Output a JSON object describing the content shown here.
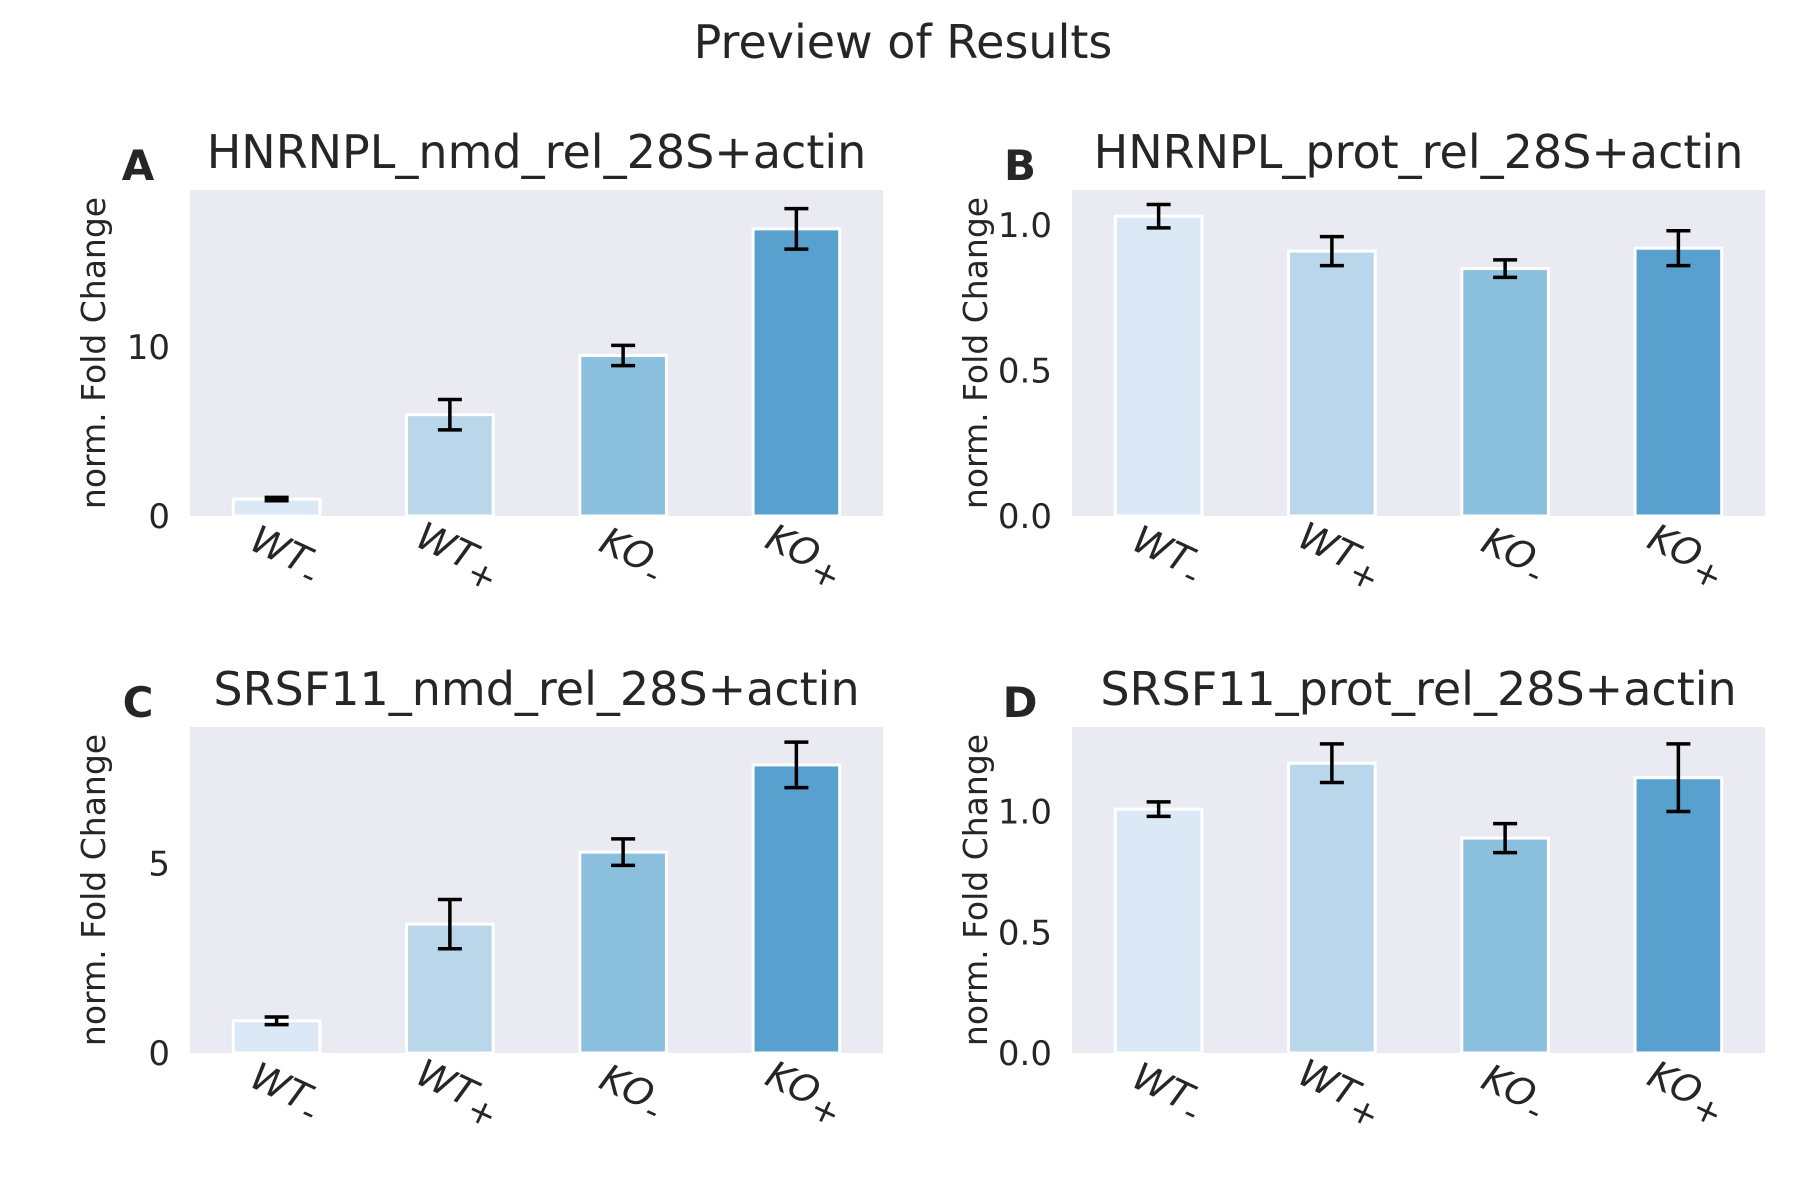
{
  "figure": {
    "suptitle": "Preview of Results"
  },
  "colors": [
    "#dbe9f6",
    "#bad6eb",
    "#8abfdd",
    "#58a1cf"
  ],
  "chart_data": [
    {
      "type": "bar",
      "panel_label": "A",
      "title": "HNRNPL_nmd_rel_28S+actin",
      "ylabel": "norm. Fold Change",
      "categories": [
        "WT-",
        "WT+",
        "KO-",
        "KO+"
      ],
      "values": [
        1.0,
        6.0,
        9.5,
        17.0
      ],
      "errors": [
        0.1,
        0.9,
        0.6,
        1.2
      ],
      "ylim": [
        0,
        19.3
      ],
      "yticks": [
        0,
        10
      ],
      "ytick_labels": [
        "0",
        "10"
      ],
      "grid": false
    },
    {
      "type": "bar",
      "panel_label": "B",
      "title": "HNRNPL_prot_rel_28S+actin",
      "ylabel": "norm. Fold Change",
      "categories": [
        "WT-",
        "WT+",
        "KO-",
        "KO+"
      ],
      "values": [
        1.03,
        0.91,
        0.85,
        0.92
      ],
      "errors": [
        0.04,
        0.05,
        0.03,
        0.06
      ],
      "ylim": [
        0,
        1.12
      ],
      "yticks": [
        0,
        0.5,
        1.0
      ],
      "ytick_labels": [
        "0.0",
        "0.5",
        "1.0"
      ],
      "grid": false
    },
    {
      "type": "bar",
      "panel_label": "C",
      "title": "SRSF11_nmd_rel_28S+actin",
      "ylabel": "norm. Fold Change",
      "categories": [
        "WT-",
        "WT+",
        "KO-",
        "KO+"
      ],
      "values": [
        0.85,
        3.4,
        5.3,
        7.6
      ],
      "errors": [
        0.1,
        0.65,
        0.35,
        0.6
      ],
      "ylim": [
        0,
        8.6
      ],
      "yticks": [
        0,
        5
      ],
      "ytick_labels": [
        "0",
        "5"
      ],
      "grid": false
    },
    {
      "type": "bar",
      "panel_label": "D",
      "title": "SRSF11_prot_rel_28S+actin",
      "ylabel": "norm. Fold Change",
      "categories": [
        "WT-",
        "WT+",
        "KO-",
        "KO+"
      ],
      "values": [
        1.01,
        1.2,
        0.89,
        1.14
      ],
      "errors": [
        0.03,
        0.08,
        0.06,
        0.14
      ],
      "ylim": [
        0,
        1.35
      ],
      "yticks": [
        0,
        0.5,
        1.0
      ],
      "ytick_labels": [
        "0.0",
        "0.5",
        "1.0"
      ],
      "grid": false
    }
  ]
}
